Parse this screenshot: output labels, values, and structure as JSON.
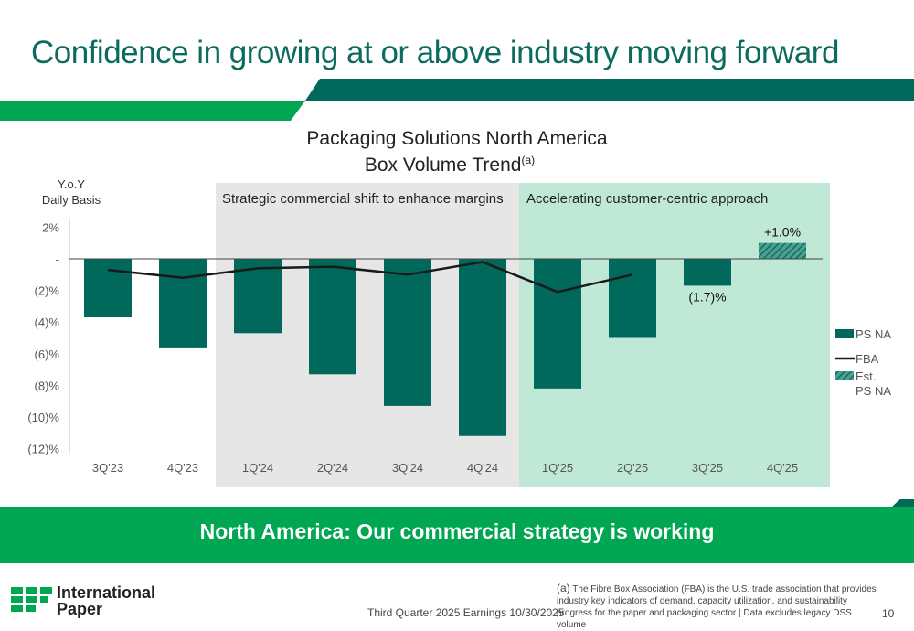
{
  "slide": {
    "title": "Confidence in growing at or above industry moving forward",
    "banner": "North America: Our commercial strategy is working",
    "footer_date": "Third Quarter 2025 Earnings 10/30/2025",
    "footnote_mark": "(a)",
    "footnote_text": "The Fibre Box Association (FBA) is the U.S. trade association that provides industry key indicators of demand, capacity utilization, and sustainability progress for the paper and packaging sector | Data excludes legacy DSS volume",
    "page_number": "10",
    "logo_line1": "International",
    "logo_line2": "Paper"
  },
  "colors": {
    "dark_teal": "#00695c",
    "bright_green": "#00a651",
    "light_green_bg": "#bfe9d6",
    "gray_bg": "#e6e6e6",
    "fba_line": "#1a1a1a",
    "title_teal": "#0b6b5e"
  },
  "chart_data": {
    "type": "bar",
    "title_line1": "Packaging Solutions North America",
    "title_line2": "Box Volume Trend",
    "title_superscript": "(a)",
    "ylabel_line1": "Y.o.Y",
    "ylabel_line2": "Daily Basis",
    "ylim": [
      -12,
      2
    ],
    "yticks": [
      2,
      0,
      -2,
      -4,
      -6,
      -8,
      -10,
      -12
    ],
    "ytick_labels": [
      "2%",
      "-",
      "(2)%",
      "(4)%",
      "(6)%",
      "(8)%",
      "(10)%",
      "(12)%"
    ],
    "categories": [
      "3Q'23",
      "4Q'23",
      "1Q'24",
      "2Q'24",
      "3Q'24",
      "4Q'24",
      "1Q'25",
      "2Q'25",
      "3Q'25",
      "4Q'25"
    ],
    "series": [
      {
        "name": "PS NA",
        "values": [
          -3.7,
          -5.6,
          -4.7,
          -7.3,
          -9.3,
          -11.2,
          -8.2,
          -5.0,
          -1.7,
          null
        ]
      },
      {
        "name": "FBA",
        "values": [
          -0.7,
          -1.2,
          -0.6,
          -0.5,
          -1.0,
          -0.2,
          -2.1,
          -1.0,
          null,
          null
        ]
      },
      {
        "name": "Est. PS NA",
        "values": [
          null,
          null,
          null,
          null,
          null,
          null,
          null,
          null,
          null,
          1.0
        ]
      }
    ],
    "data_labels": {
      "3Q'25": "(1.7)%",
      "4Q'25": "+1.0%"
    },
    "regions": [
      {
        "label": "Strategic commercial shift to enhance margins",
        "from": "1Q'24",
        "to": "4Q'24"
      },
      {
        "label": "Accelerating customer-centric approach",
        "from": "1Q'25",
        "to": "4Q'25"
      }
    ],
    "legend": [
      "PS NA",
      "FBA",
      "Est.\nPS NA"
    ],
    "legend_position": "right"
  }
}
